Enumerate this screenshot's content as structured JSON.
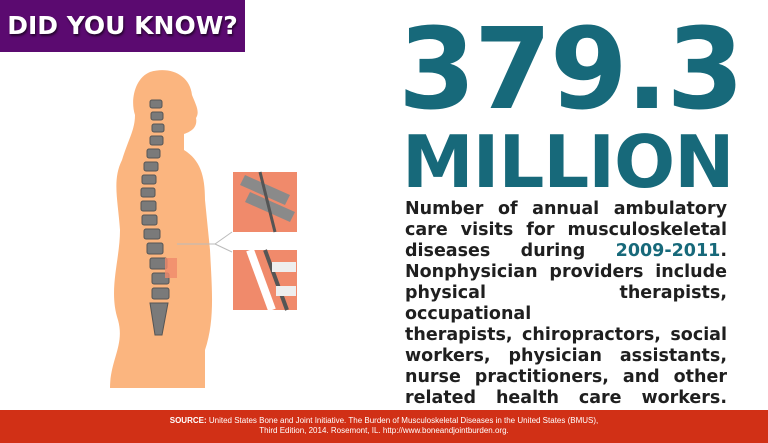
{
  "badge": {
    "label": "DID YOU KNOW?"
  },
  "headline": {
    "number": "379.3",
    "unit": "MILLION"
  },
  "description": {
    "lines": [
      "Number of annual ambulatory",
      "care visits for musculoskeletal",
      "diseases during "
    ],
    "highlight": "2009-2011",
    "line3_end": ".",
    "rest": [
      "Nonphysician providers include",
      "physical therapists, occupational",
      "therapists, chiropractors, social",
      "workers, physician assistants,",
      "nurse practitioners, and other",
      "related health care workers."
    ]
  },
  "footer": {
    "source_label": "SOURCE:",
    "line1": " United States Bone and Joint Initiative. The Burden of Musculoskeletal Diseases in the United States (BMUS),",
    "line2": "Third Edition, 2014. Rosemont, IL. http://www.boneandjointburden.org."
  },
  "colors": {
    "purple": "#5b0a70",
    "teal": "#17697a",
    "red": "#d13016",
    "skin": "#fbb57f",
    "bone": "#777777"
  },
  "illustration": {
    "icon": "human-spine-illustration"
  }
}
